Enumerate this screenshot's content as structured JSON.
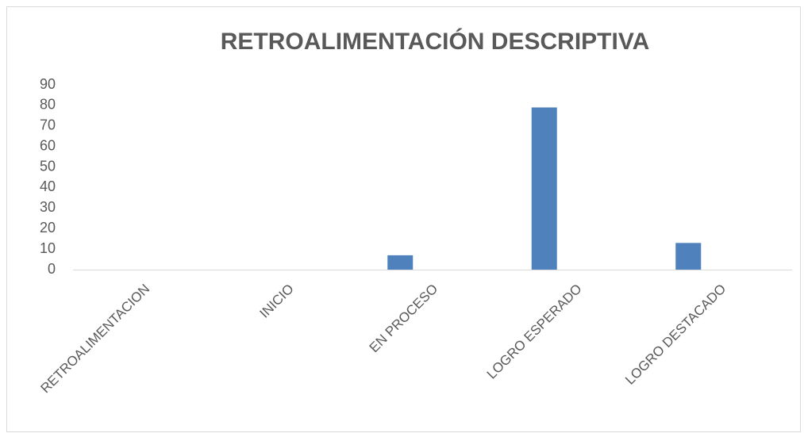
{
  "chart_data": {
    "type": "bar",
    "title": "RETROALIMENTACIÓN DESCRIPTIVA",
    "categories": [
      "RETROALIMENTACION",
      "INICIO",
      "EN PROCESO",
      "LOGRO ESPERADO",
      "LOGRO DESTACADO"
    ],
    "values": [
      0,
      0,
      7,
      79,
      13
    ],
    "color": "#4f81bd",
    "ylim": [
      0,
      90
    ],
    "yticks": [
      0,
      10,
      20,
      30,
      40,
      50,
      60,
      70,
      80,
      90
    ],
    "grid": false
  }
}
